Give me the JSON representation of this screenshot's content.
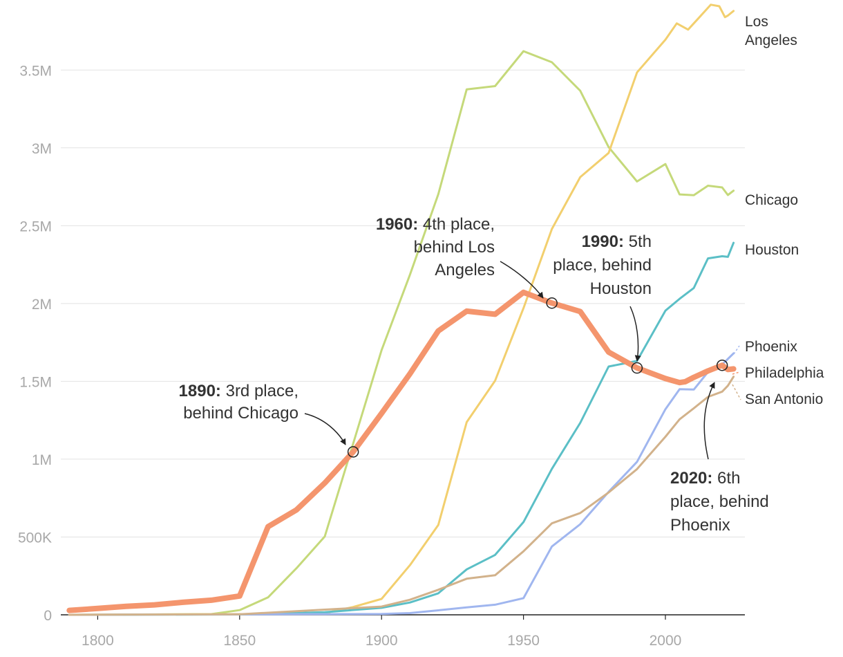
{
  "chart_data": {
    "type": "line",
    "title": "",
    "xlabel": "",
    "ylabel": "",
    "xlim": [
      1787,
      2028
    ],
    "ylim": [
      0,
      3950000
    ],
    "x_ticks": [
      {
        "value": 1800,
        "label": "1800"
      },
      {
        "value": 1850,
        "label": "1850"
      },
      {
        "value": 1900,
        "label": "1900"
      },
      {
        "value": 1950,
        "label": "1950"
      },
      {
        "value": 2000,
        "label": "2000"
      }
    ],
    "y_ticks": [
      {
        "value": 0,
        "label": "0"
      },
      {
        "value": 500000,
        "label": "500K"
      },
      {
        "value": 1000000,
        "label": "1M"
      },
      {
        "value": 1500000,
        "label": "1.5M"
      },
      {
        "value": 2000000,
        "label": "2M"
      },
      {
        "value": 2500000,
        "label": "2.5M"
      },
      {
        "value": 3000000,
        "label": "3M"
      },
      {
        "value": 3500000,
        "label": "3.5M"
      }
    ],
    "grid": true,
    "series": [
      {
        "name": "Chicago",
        "label_lines": [
          "Chicago"
        ],
        "color": "#c5d97a",
        "width": 3,
        "x": [
          1790,
          1840,
          1850,
          1860,
          1870,
          1880,
          1890,
          1900,
          1910,
          1920,
          1930,
          1940,
          1950,
          1960,
          1970,
          1980,
          1990,
          2000,
          2005,
          2010,
          2015,
          2020,
          2022,
          2024
        ],
        "values": [
          0,
          4470,
          30000,
          112000,
          299000,
          503000,
          1100000,
          1700000,
          2185000,
          2702000,
          3376000,
          3397000,
          3621000,
          3550000,
          3367000,
          3005000,
          2784000,
          2896000,
          2701000,
          2696000,
          2757000,
          2746000,
          2697000,
          2725000
        ]
      },
      {
        "name": "Los Angeles",
        "label_lines": [
          "Los",
          "Angeles"
        ],
        "color": "#f2cf6e",
        "width": 3,
        "x": [
          1790,
          1870,
          1880,
          1890,
          1900,
          1910,
          1920,
          1930,
          1940,
          1950,
          1960,
          1970,
          1980,
          1990,
          2000,
          2004,
          2008,
          2012,
          2016,
          2019,
          2021,
          2022,
          2024
        ],
        "values": [
          0,
          5700,
          11000,
          50000,
          102000,
          319000,
          577000,
          1238000,
          1504000,
          1970000,
          2479000,
          2812000,
          2967000,
          3485000,
          3695000,
          3800000,
          3760000,
          3840000,
          3920000,
          3910000,
          3840000,
          3850000,
          3880000
        ]
      },
      {
        "name": "Houston",
        "label_lines": [
          "Houston"
        ],
        "color": "#5bbfc6",
        "width": 3,
        "x": [
          1790,
          1850,
          1880,
          1900,
          1910,
          1920,
          1930,
          1940,
          1950,
          1960,
          1970,
          1980,
          1990,
          2000,
          2005,
          2010,
          2015,
          2020,
          2022,
          2024
        ],
        "values": [
          0,
          2400,
          17000,
          45000,
          79000,
          138000,
          292000,
          385000,
          596000,
          938000,
          1233000,
          1595000,
          1631000,
          1954000,
          2030000,
          2100000,
          2290000,
          2304000,
          2300000,
          2390000
        ]
      },
      {
        "name": "Phoenix",
        "label_lines": [
          "Phoenix"
        ],
        "color": "#a0b6ef",
        "width": 3,
        "x": [
          1790,
          1900,
          1910,
          1920,
          1930,
          1940,
          1950,
          1960,
          1970,
          1980,
          1990,
          2000,
          2005,
          2010,
          2015,
          2020,
          2022,
          2024
        ],
        "values": [
          0,
          5500,
          11000,
          29000,
          48000,
          65000,
          107000,
          439000,
          582000,
          790000,
          983000,
          1321000,
          1450000,
          1447000,
          1560000,
          1608000,
          1644000,
          1680000
        ]
      },
      {
        "name": "San Antonio",
        "label_lines": [
          "San Antonio"
        ],
        "color": "#d2b28b",
        "width": 3,
        "x": [
          1790,
          1850,
          1900,
          1910,
          1920,
          1930,
          1940,
          1950,
          1960,
          1970,
          1980,
          1990,
          2000,
          2005,
          2010,
          2015,
          2020,
          2022,
          2024
        ],
        "values": [
          0,
          3500,
          53000,
          97000,
          161000,
          232000,
          254000,
          408000,
          588000,
          654000,
          786000,
          936000,
          1144000,
          1256000,
          1327000,
          1400000,
          1434000,
          1472000,
          1530000
        ]
      },
      {
        "name": "Philadelphia",
        "label_lines": [
          "Philadelphia"
        ],
        "color": "#f4956d",
        "width": 8,
        "x": [
          1790,
          1800,
          1810,
          1820,
          1830,
          1840,
          1850,
          1860,
          1870,
          1880,
          1890,
          1900,
          1910,
          1920,
          1930,
          1940,
          1950,
          1960,
          1970,
          1980,
          1990,
          2000,
          2005,
          2007,
          2010,
          2015,
          2020,
          2022,
          2024
        ],
        "values": [
          28500,
          41000,
          54000,
          64000,
          80500,
          93700,
          121000,
          566000,
          674000,
          847000,
          1047000,
          1294000,
          1549000,
          1824000,
          1951000,
          1931000,
          2072000,
          2003000,
          1949000,
          1688000,
          1586000,
          1518000,
          1492000,
          1498000,
          1526000,
          1567000,
          1603000,
          1576000,
          1580000
        ]
      }
    ],
    "annotations": [
      {
        "name": "1890",
        "x": 1890,
        "y": 1047000,
        "bold": "1890:",
        "lines": [
          "3rd place,",
          "behind Chicago"
        ]
      },
      {
        "name": "1960",
        "x": 1960,
        "y": 2003000,
        "bold": "1960:",
        "lines": [
          "4th place,",
          "behind Los",
          "Angeles"
        ]
      },
      {
        "name": "1990",
        "x": 1990,
        "y": 1586000,
        "bold": "1990:",
        "lines": [
          "5th",
          "place, behind",
          "Houston"
        ]
      },
      {
        "name": "2020",
        "x": 2020,
        "y": 1603000,
        "bold": "2020:",
        "lines": [
          "6th",
          "place, behind",
          "Phoenix"
        ]
      }
    ]
  }
}
